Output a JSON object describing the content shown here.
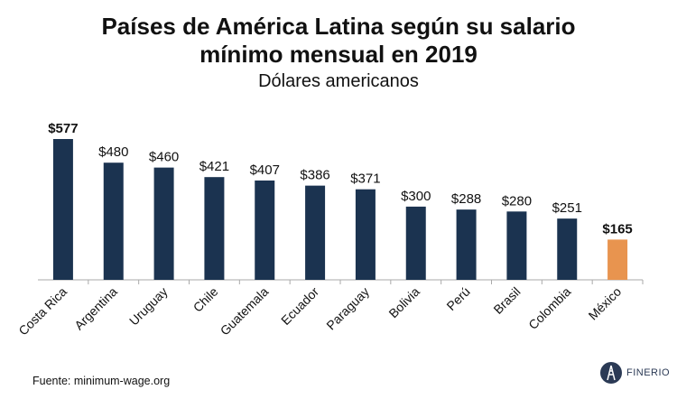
{
  "title_line1": "Países de América Latina según su salario",
  "title_line2": "mínimo mensual en 2019",
  "subtitle": "Dólares americanos",
  "source": "Fuente: minimum-wage.org",
  "brand": "FINERIO",
  "colors": {
    "bar": "#1b3350",
    "highlight": "#e8944f",
    "axis": "#aaaaaa"
  },
  "chart_data": {
    "type": "bar",
    "categories": [
      "Costa Rica",
      "Argentina",
      "Uruguay",
      "Chile",
      "Guatemala",
      "Ecuador",
      "Paraguay",
      "Bolivia",
      "Perú",
      "Brasil",
      "Colombia",
      "México"
    ],
    "values": [
      577,
      480,
      460,
      421,
      407,
      386,
      371,
      300,
      288,
      280,
      251,
      165
    ],
    "labels": [
      "$577",
      "$480",
      "$460",
      "$421",
      "$407",
      "$386",
      "$371",
      "$300",
      "$288",
      "$280",
      "$251",
      "$165"
    ],
    "bold_labels": [
      "Costa Rica",
      "México"
    ],
    "highlight": "México",
    "ylim": [
      0,
      577
    ]
  }
}
